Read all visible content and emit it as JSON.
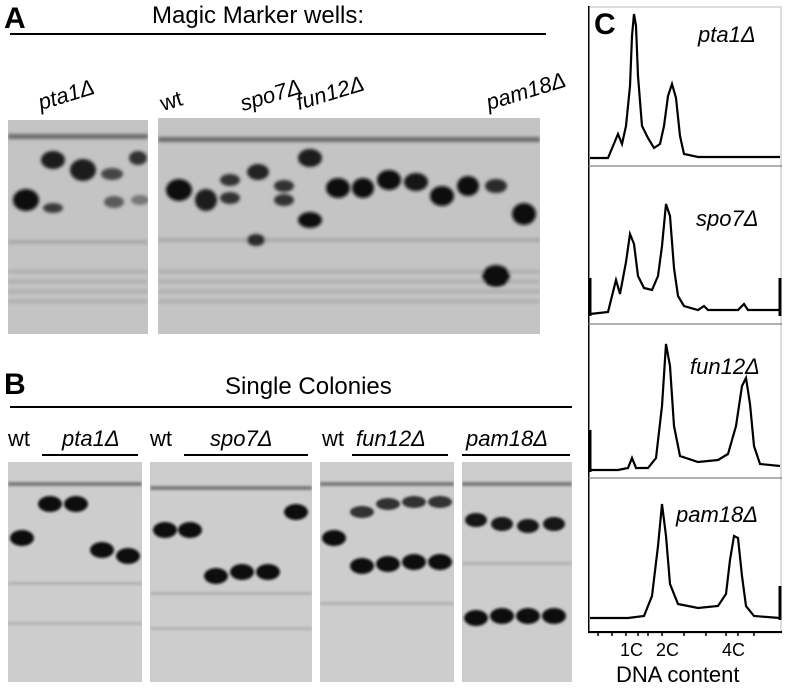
{
  "panel_a": {
    "letter": "A",
    "title": "Magic Marker wells:",
    "labels": [
      "pta1Δ",
      "wt",
      "spo7Δ",
      "fun12Δ",
      "pam18Δ"
    ]
  },
  "panel_b": {
    "letter": "B",
    "title": "Single Colonies",
    "labels": [
      "wt",
      "pta1Δ",
      "wt",
      "spo7Δ",
      "wt",
      "fun12Δ",
      "pam18Δ"
    ]
  },
  "panel_c": {
    "letter": "C",
    "strains": [
      "pta1Δ",
      "spo7Δ",
      "fun12Δ",
      "pam18Δ"
    ],
    "x_ticks": [
      "1C",
      "2C",
      "4C"
    ],
    "xlabel": "DNA content"
  }
}
